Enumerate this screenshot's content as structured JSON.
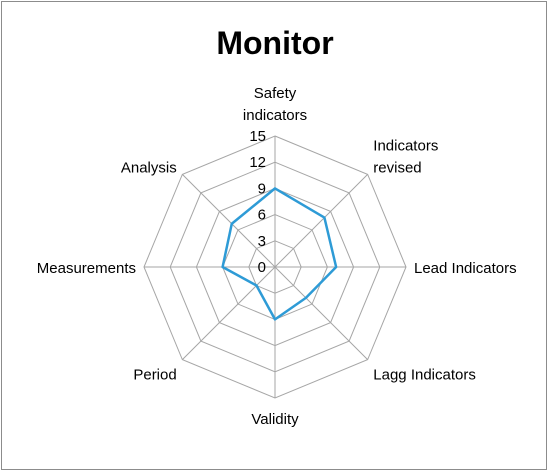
{
  "chart_data": {
    "type": "radar",
    "title": "Monitor",
    "categories": [
      [
        "Safety",
        "indicators"
      ],
      [
        "Indicators",
        "revised"
      ],
      [
        "Lead Indicators"
      ],
      [
        "Lagg Indicators"
      ],
      [
        "Validity"
      ],
      [
        "Period"
      ],
      [
        "Measurements"
      ],
      [
        "Analysis"
      ]
    ],
    "r_ticks": [
      "0",
      "3",
      "6",
      "9",
      "12",
      "15"
    ],
    "r_range": [
      0,
      15
    ],
    "grid": true,
    "legend": "none",
    "series": [
      {
        "values": [
          9,
          8,
          7,
          5,
          6,
          3,
          6,
          7
        ],
        "color": "#2e9bd6"
      }
    ]
  }
}
